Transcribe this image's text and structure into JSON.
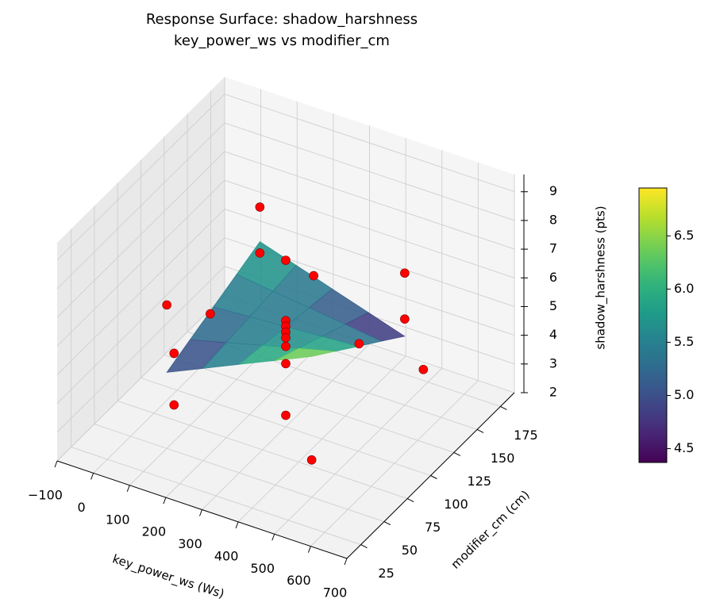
{
  "chart_data": {
    "type": "surface3d",
    "title": "Response Surface: shadow_harshness",
    "subtitle": "key_power_ws vs modifier_cm",
    "x_label": "key_power_ws (Ws)",
    "y_label": "modifier_cm (cm)",
    "z_label": "shadow_harshness (pts)",
    "xlim": [
      -100,
      700
    ],
    "xticks": [
      {
        "value": -100,
        "label": "−100"
      },
      0,
      100,
      200,
      300,
      400,
      500,
      600,
      700
    ],
    "ylim": [
      10,
      190
    ],
    "yticks": [
      25,
      50,
      75,
      100,
      125,
      150,
      175
    ],
    "zlim": [
      2.0,
      9.6
    ],
    "zticks": [
      2,
      3,
      4,
      5,
      6,
      7,
      8,
      9
    ],
    "grid": true,
    "surface": {
      "colormap": "viridis",
      "x": [
        100,
        200,
        300,
        400,
        500
      ],
      "y": [
        50,
        75,
        100,
        125,
        150
      ],
      "z": [
        [
          4.65,
          5.21,
          5.78,
          6.34,
          6.9
        ],
        [
          4.99,
          5.31,
          5.64,
          5.96,
          6.28
        ],
        [
          5.33,
          5.41,
          5.49,
          5.57,
          5.65
        ],
        [
          5.66,
          5.5,
          5.35,
          5.19,
          5.03
        ],
        [
          6.0,
          5.6,
          5.2,
          4.8,
          4.4
        ]
      ]
    },
    "points": {
      "color": "#ff0000",
      "x": [
        100,
        100,
        300,
        300,
        300,
        300,
        300,
        300,
        300,
        300,
        300,
        500,
        500,
        500,
        500,
        320,
        100,
        120,
        120,
        220
      ],
      "y": [
        150,
        150,
        100,
        100,
        100,
        100,
        100,
        100,
        100,
        100,
        130,
        50,
        150,
        150,
        170,
        171,
        50,
        50,
        50,
        50
      ],
      "z": [
        7.2,
        5.6,
        7.8,
        5.7,
        5.5,
        5.3,
        5.1,
        4.8,
        4.2,
        2.4,
        6.3,
        3.3,
        6.6,
        5.0,
        2.6,
        2.7,
        7.0,
        5.4,
        3.6,
        7.2
      ]
    },
    "colorbar": {
      "lim": [
        4.37,
        6.95
      ],
      "ticks": [
        4.5,
        {
          "value": 5,
          "label": "5.0"
        },
        5.5,
        {
          "value": 6,
          "label": "6.0"
        },
        6.5
      ]
    }
  }
}
